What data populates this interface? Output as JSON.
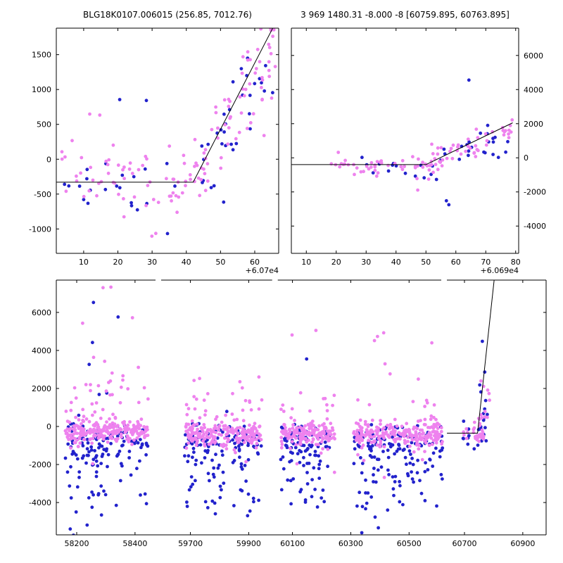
{
  "colors": {
    "background": "#ffffff",
    "pink": "#EE82EE",
    "blue": "#2222CC",
    "line": "#000000"
  },
  "chart_meta": {
    "seed": 1337,
    "marker": "dot"
  },
  "chart_data": [
    {
      "id": "top_left",
      "type": "scatter",
      "title": "BLG18K0107.006015 (256.85, 7012.76)",
      "x_offset": "+6.07e4",
      "xlim": [
        2,
        67
      ],
      "ylim": [
        -1350,
        1880
      ],
      "xticks": [
        10,
        20,
        30,
        40,
        50,
        60
      ],
      "yticks": [
        -1000,
        -500,
        0,
        500,
        1000,
        1500
      ],
      "ytick_side": "left",
      "line": [
        [
          2,
          -330
        ],
        [
          42,
          -330
        ],
        [
          66,
          1950
        ]
      ],
      "clusters": [
        {
          "c": "b",
          "n": 22,
          "x": [
            4,
            42
          ],
          "y0": -350,
          "s": 300
        },
        {
          "c": "b",
          "n": 2,
          "x": [
            20,
            30
          ],
          "y0": 870,
          "s": 80
        },
        {
          "c": "b",
          "n": 34,
          "x": [
            42,
            66
          ],
          "y0": -300,
          "y1": 1350,
          "s": 420
        },
        {
          "c": "v",
          "n": 62,
          "x": [
            3,
            42
          ],
          "y0": -300,
          "s": 270
        },
        {
          "c": "v",
          "n": 2,
          "x": [
            10,
            15
          ],
          "y0": 640,
          "s": 40
        },
        {
          "c": "v",
          "n": 2,
          "x": [
            29,
            34
          ],
          "y0": -1070,
          "s": 60
        },
        {
          "c": "v",
          "n": 72,
          "x": [
            42,
            66
          ],
          "y0": -300,
          "y1": 1550,
          "s": 330
        }
      ]
    },
    {
      "id": "top_right",
      "type": "scatter",
      "title": "3 969 1480.31 -8.000 -8 [60759.895, 60763.895]",
      "x_offset": "+6.069e4",
      "xlim": [
        5,
        81
      ],
      "ylim": [
        -5600,
        7600
      ],
      "xticks": [
        10,
        20,
        30,
        40,
        50,
        60,
        70,
        80
      ],
      "yticks": [
        -4000,
        -2000,
        0,
        2000,
        4000,
        6000
      ],
      "ytick_side": "right",
      "line": [
        [
          5,
          -400
        ],
        [
          50,
          -400
        ],
        [
          79,
          2050
        ]
      ],
      "clusters": [
        {
          "c": "b",
          "n": 12,
          "x": [
            28,
            50
          ],
          "y0": -550,
          "s": 350
        },
        {
          "c": "b",
          "n": 26,
          "x": [
            50,
            79
          ],
          "y0": -500,
          "y1": 1250,
          "s": 650
        },
        {
          "c": "b",
          "n": 1,
          "x": [
            63.5,
            64.5
          ],
          "y0": 4450,
          "s": 80
        },
        {
          "c": "b",
          "n": 2,
          "x": [
            55,
            60
          ],
          "y0": -2600,
          "s": 150
        },
        {
          "c": "v",
          "n": 40,
          "x": [
            17,
            50
          ],
          "y0": -450,
          "s": 280
        },
        {
          "c": "v",
          "n": 1,
          "x": [
            19,
            21
          ],
          "y0": 350,
          "s": 60
        },
        {
          "c": "v",
          "n": 2,
          "x": [
            44,
            58
          ],
          "y0": -1800,
          "s": 250
        },
        {
          "c": "v",
          "n": 55,
          "x": [
            50,
            79
          ],
          "y0": -450,
          "y1": 1700,
          "s": 380
        }
      ]
    },
    {
      "id": "bottom",
      "type": "scatter",
      "title": "",
      "x_offset": "",
      "x_segments": [
        [
          58130,
          58480
        ],
        [
          59590,
          59990
        ],
        [
          60040,
          60620
        ],
        [
          60630,
          60980
        ]
      ],
      "ylim": [
        -5700,
        7700
      ],
      "xticks": [
        58200,
        58400,
        59700,
        59900,
        60100,
        60300,
        60500,
        60700,
        60900
      ],
      "yticks": [
        -4000,
        -2000,
        0,
        2000,
        4000,
        6000
      ],
      "ytick_side": "left",
      "line": [
        [
          60640,
          -350
        ],
        [
          60745,
          -350
        ],
        [
          60802,
          7750
        ]
      ],
      "clusters": [
        {
          "c": "b",
          "n": 90,
          "x": [
            58160,
            58445
          ],
          "y0": -700,
          "s": 480
        },
        {
          "c": "b",
          "n": 55,
          "x": [
            58160,
            58445
          ],
          "y0": -2300,
          "s": 1150
        },
        {
          "c": "b",
          "n": 3,
          "x": [
            58200,
            58420
          ],
          "y0": 3200,
          "s": 1400
        },
        {
          "c": "b",
          "n": 2,
          "x": [
            58250,
            58400
          ],
          "y0": 5600,
          "s": 500
        },
        {
          "c": "b",
          "n": 85,
          "x": [
            59680,
            59945
          ],
          "y0": -800,
          "s": 500
        },
        {
          "c": "b",
          "n": 50,
          "x": [
            59680,
            59945
          ],
          "y0": -2600,
          "s": 1200
        },
        {
          "c": "b",
          "n": 65,
          "x": [
            60060,
            60245
          ],
          "y0": -800,
          "s": 500
        },
        {
          "c": "b",
          "n": 40,
          "x": [
            60060,
            60245
          ],
          "y0": -2600,
          "s": 1200
        },
        {
          "c": "b",
          "n": 1,
          "x": [
            60100,
            60150
          ],
          "y0": 3600,
          "s": 200
        },
        {
          "c": "b",
          "n": 95,
          "x": [
            60310,
            60615
          ],
          "y0": -900,
          "s": 520
        },
        {
          "c": "b",
          "n": 62,
          "x": [
            60310,
            60615
          ],
          "y0": -2700,
          "s": 1250
        },
        {
          "c": "b",
          "n": 14,
          "x": [
            60695,
            60770
          ],
          "y0": -500,
          "s": 400
        },
        {
          "c": "b",
          "n": 10,
          "x": [
            60745,
            60795
          ],
          "y0": -200,
          "y1": 1600,
          "s": 500
        },
        {
          "c": "b",
          "n": 1,
          "x": [
            60758,
            60766
          ],
          "y0": 4500,
          "s": 80
        },
        {
          "c": "b",
          "n": 3,
          "x": [
            60750,
            60780
          ],
          "y0": 2200,
          "y1": 3200,
          "s": 350
        },
        {
          "c": "v",
          "n": 210,
          "x": [
            58160,
            58445
          ],
          "y0": -250,
          "s": 300
        },
        {
          "c": "v",
          "n": 45,
          "x": [
            58160,
            58445
          ],
          "y0": 600,
          "s": 1300
        },
        {
          "c": "v",
          "n": 6,
          "x": [
            58180,
            58430
          ],
          "y0": 3000,
          "s": 900
        },
        {
          "c": "v",
          "n": 2,
          "x": [
            58250,
            58320
          ],
          "y0": 7300,
          "s": 120
        },
        {
          "c": "v",
          "n": 1,
          "x": [
            58200,
            58260
          ],
          "y0": 5500,
          "s": 80
        },
        {
          "c": "v",
          "n": 190,
          "x": [
            59680,
            59945
          ],
          "y0": -350,
          "s": 300
        },
        {
          "c": "v",
          "n": 35,
          "x": [
            59680,
            59945
          ],
          "y0": 400,
          "s": 1100
        },
        {
          "c": "v",
          "n": 3,
          "x": [
            59700,
            59900
          ],
          "y0": 2400,
          "s": 300
        },
        {
          "c": "v",
          "n": 150,
          "x": [
            60060,
            60245
          ],
          "y0": -350,
          "s": 300
        },
        {
          "c": "v",
          "n": 28,
          "x": [
            60060,
            60245
          ],
          "y0": 300,
          "s": 1100
        },
        {
          "c": "v",
          "n": 2,
          "x": [
            60080,
            60200
          ],
          "y0": 5200,
          "s": 700
        },
        {
          "c": "v",
          "n": 210,
          "x": [
            60310,
            60615
          ],
          "y0": -400,
          "s": 300
        },
        {
          "c": "v",
          "n": 35,
          "x": [
            60310,
            60615
          ],
          "y0": 300,
          "s": 1250
        },
        {
          "c": "v",
          "n": 4,
          "x": [
            60350,
            60580
          ],
          "y0": 4800,
          "s": 800
        },
        {
          "c": "v",
          "n": 26,
          "x": [
            60695,
            60770
          ],
          "y0": -350,
          "s": 280
        },
        {
          "c": "v",
          "n": 12,
          "x": [
            60745,
            60795
          ],
          "y0": -100,
          "y1": 1800,
          "s": 400
        },
        {
          "c": "v",
          "n": 2,
          "x": [
            60755,
            60785
          ],
          "y0": 2600,
          "s": 300
        }
      ]
    }
  ]
}
